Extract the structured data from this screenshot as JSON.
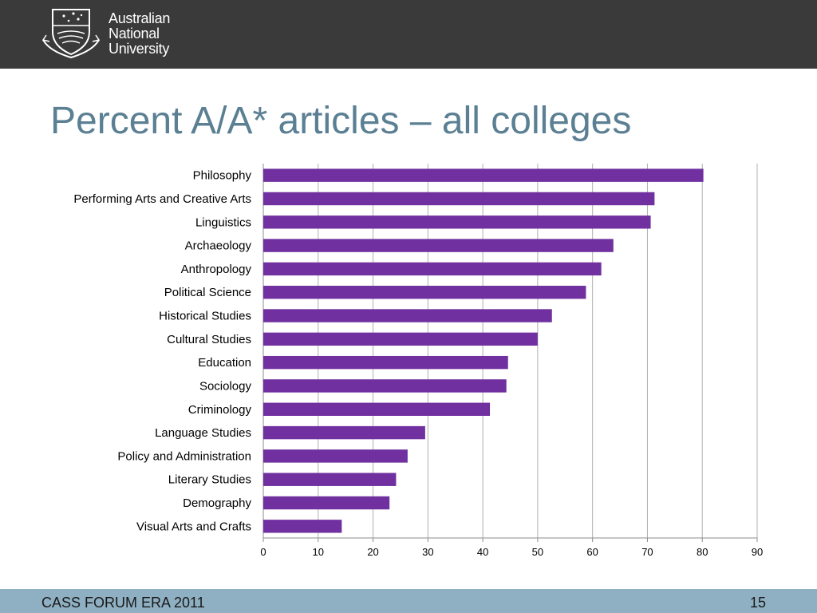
{
  "header": {
    "logo_lines": [
      "Australian",
      "National",
      "University"
    ]
  },
  "slide": {
    "title": "Percent A/A* articles – all colleges"
  },
  "footer": {
    "left_text": "CASS FORUM ERA 2011",
    "page_number": "15"
  },
  "colors": {
    "header_bg": "#3a3a3a",
    "title": "#5b7f93",
    "bar": "#7030a0",
    "footer_bg": "#8fb0c2"
  },
  "chart_data": {
    "type": "bar",
    "orientation": "horizontal",
    "categories": [
      "Philosophy",
      "Performing Arts and Creative Arts",
      "Linguistics",
      "Archaeology",
      "Anthropology",
      "Political Science",
      "Historical Studies",
      "Cultural Studies",
      "Education",
      "Sociology",
      "Criminology",
      "Language Studies",
      "Policy and Administration",
      "Literary Studies",
      "Demography",
      "Visual Arts and Crafts"
    ],
    "values": [
      80.2,
      71.3,
      70.6,
      63.8,
      61.6,
      58.8,
      52.6,
      50.0,
      44.6,
      44.3,
      41.3,
      29.5,
      26.3,
      24.2,
      23.0,
      14.3
    ],
    "xlim": [
      0,
      90
    ],
    "x_ticks": [
      0,
      10,
      20,
      30,
      40,
      50,
      60,
      70,
      80,
      90
    ],
    "grid": true,
    "legend": "none"
  }
}
